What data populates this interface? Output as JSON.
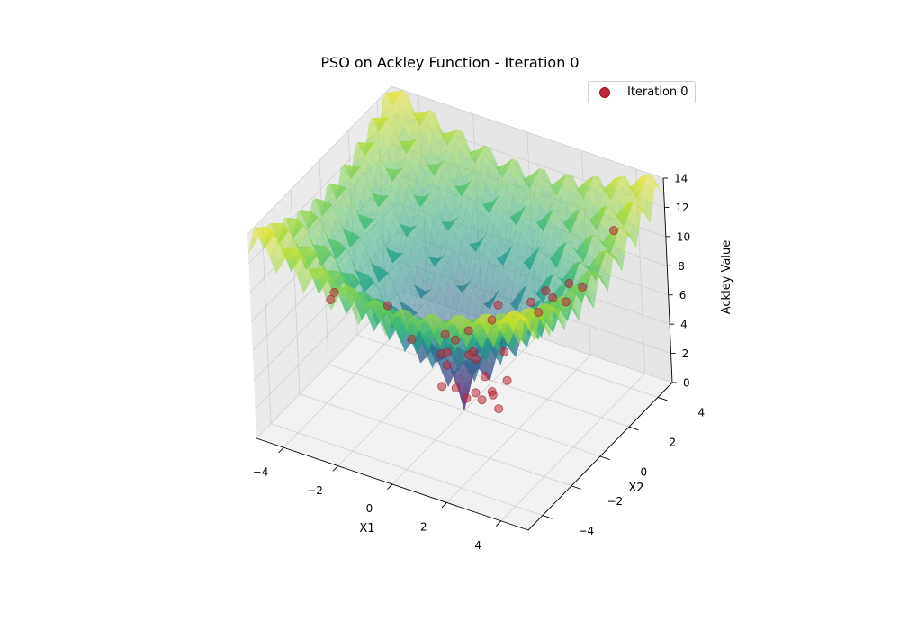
{
  "chart_data": {
    "type": "surface3d-scatter",
    "title": "PSO on Ackley Function - Iteration 0",
    "xlabel": "X1",
    "ylabel": "X2",
    "zlabel": "Ackley Value",
    "xlim": [
      -5,
      5
    ],
    "ylim": [
      -5,
      5
    ],
    "zlim": [
      0,
      14
    ],
    "xticks": [
      "−4",
      "−2",
      "0",
      "2",
      "4"
    ],
    "yticks": [
      "−4",
      "−2",
      "0",
      "2",
      "4"
    ],
    "zticks": [
      "0",
      "2",
      "4",
      "6",
      "8",
      "10",
      "12",
      "14"
    ],
    "surface": {
      "function": "ackley",
      "colormap": "viridis",
      "alpha": 0.5
    },
    "legend": {
      "position": "top-right",
      "entries": [
        "Iteration 0"
      ]
    },
    "series": [
      {
        "name": "Iteration 0",
        "color": "#c0283a",
        "points": [
          [
            -2.9,
            -3.4,
            9.2
          ],
          [
            1.8,
            -3.6,
            9.6
          ],
          [
            3.6,
            -1.2,
            10.2
          ],
          [
            4.3,
            2.8,
            12.2
          ],
          [
            2.9,
            0.6,
            9.4
          ],
          [
            2.0,
            -1.0,
            9.5
          ],
          [
            1.3,
            -1.8,
            8.1
          ],
          [
            0.8,
            -2.4,
            6.9
          ],
          [
            -1.9,
            -1.4,
            7.4
          ],
          [
            -3.2,
            -2.6,
            8.7
          ],
          [
            2.7,
            1.4,
            8.0
          ],
          [
            3.3,
            1.2,
            8.3
          ],
          [
            3.6,
            1.8,
            8.9
          ],
          [
            2.6,
            2.7,
            7.6
          ],
          [
            1.6,
            1.9,
            6.5
          ],
          [
            0.5,
            1.2,
            5.3
          ],
          [
            0.3,
            0.2,
            4.0
          ],
          [
            -0.6,
            -0.3,
            3.8
          ],
          [
            -1.4,
            -0.8,
            4.8
          ],
          [
            -1.1,
            0.9,
            3.6
          ],
          [
            -0.3,
            1.0,
            2.6
          ],
          [
            0.6,
            0.4,
            2.3
          ],
          [
            -0.4,
            -0.7,
            2.1
          ],
          [
            0.1,
            0.0,
            0.9
          ],
          [
            -0.8,
            0.4,
            2.2
          ],
          [
            0.8,
            1.4,
            3.1
          ],
          [
            -0.5,
            1.8,
            1.4
          ],
          [
            0.4,
            -1.2,
            3.0
          ],
          [
            0.9,
            -0.4,
            1.7
          ],
          [
            1.2,
            0.8,
            2.0
          ],
          [
            1.4,
            -0.2,
            1.2
          ],
          [
            0.7,
            0.7,
            0.8
          ],
          [
            0.0,
            0.8,
            0.4
          ],
          [
            0.5,
            1.0,
            0.6
          ]
        ]
      }
    ]
  }
}
